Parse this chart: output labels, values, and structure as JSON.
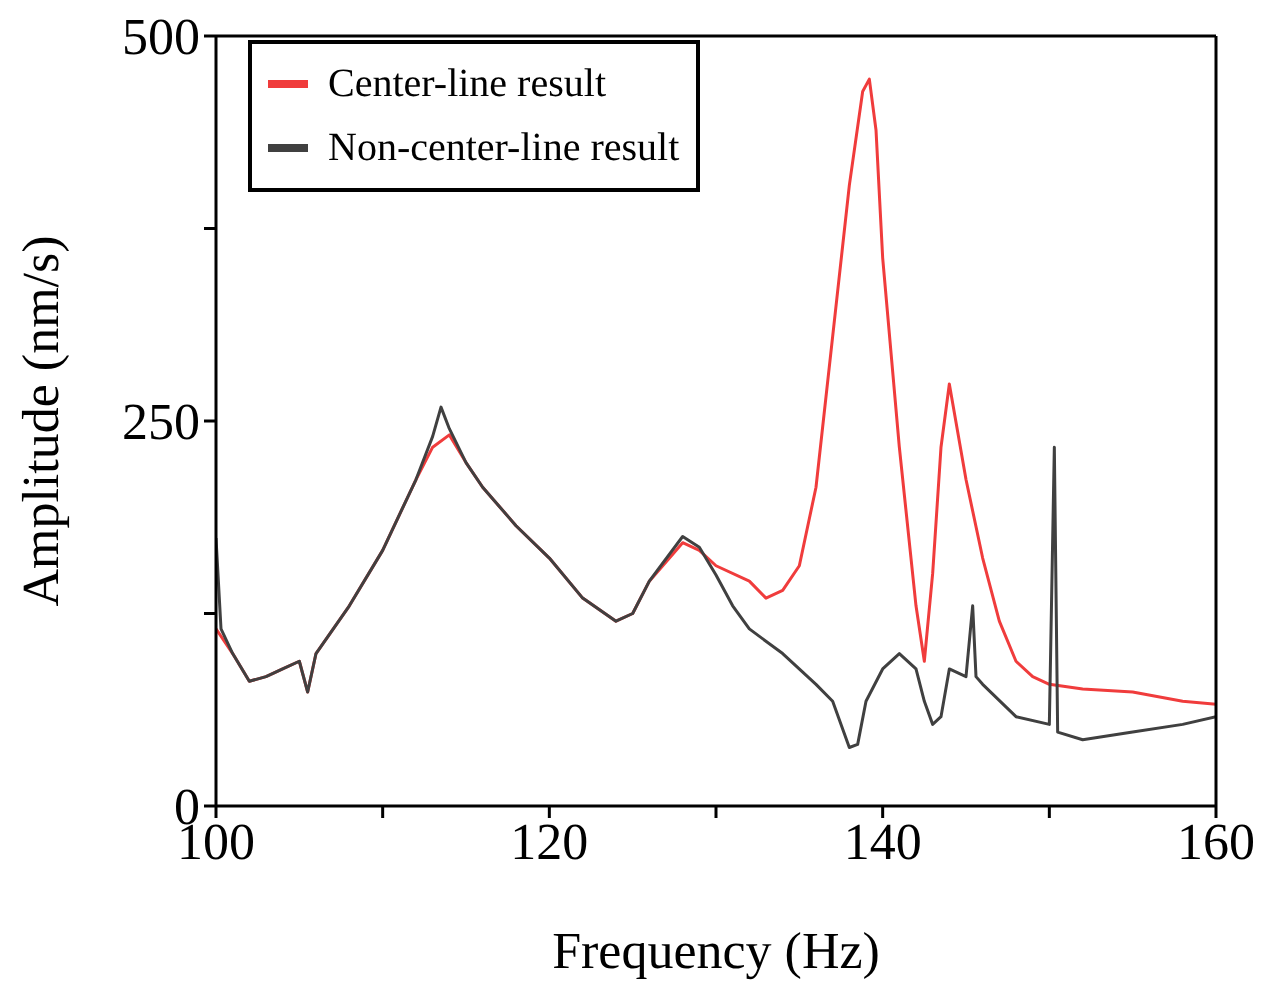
{
  "chart_data": {
    "type": "line",
    "xlabel": "Frequency (Hz)",
    "ylabel": "Amplitude (nm/s)",
    "xlim": [
      100,
      160
    ],
    "ylim": [
      0,
      500
    ],
    "xticks": [
      100,
      {
        "value": 110,
        "label": null
      },
      120,
      {
        "value": 130,
        "label": null
      },
      140,
      {
        "value": 150,
        "label": null
      },
      160
    ],
    "yticks": [
      0,
      {
        "value": 125,
        "label": null
      },
      250,
      {
        "value": 375,
        "label": null
      },
      500
    ],
    "grid": false,
    "legend": "top left",
    "marker": "none",
    "line_style": "solid",
    "series": [
      {
        "name": "Center-line result",
        "color": "#f03c3c",
        "x": [
          100,
          101,
          102,
          103,
          104,
          105,
          105.5,
          106,
          108,
          110,
          112,
          113,
          114,
          115,
          116,
          118,
          120,
          122,
          124,
          125,
          126,
          128,
          129,
          130,
          132,
          133,
          134,
          135,
          136,
          137,
          138,
          138.8,
          139.2,
          139.6,
          140,
          141,
          142,
          142.5,
          143,
          143.5,
          144,
          144.5,
          145,
          146,
          147,
          148,
          149,
          150,
          152,
          155,
          158,
          160
        ],
        "values": [
          115,
          99,
          81,
          84,
          89,
          94,
          74,
          99,
          130,
          166,
          212,
          233,
          241,
          223,
          207,
          182,
          161,
          135,
          120,
          125,
          146,
          171,
          166,
          156,
          146,
          135,
          140,
          156,
          207,
          305,
          403,
          464,
          472,
          439,
          356,
          233,
          130,
          94,
          151,
          233,
          274,
          243,
          212,
          161,
          120,
          94,
          84,
          79,
          76,
          74,
          68,
          66
        ]
      },
      {
        "name": "Non-center-line result",
        "color": "#404040",
        "x": [
          100,
          100.3,
          101,
          102,
          103,
          104,
          105,
          105.5,
          106,
          108,
          110,
          112,
          113,
          113.5,
          114,
          115,
          116,
          118,
          120,
          122,
          124,
          125,
          126,
          128,
          129,
          130,
          131,
          132,
          134,
          136,
          137,
          138,
          138.5,
          139,
          140,
          141,
          142,
          142.5,
          143,
          143.5,
          144,
          145,
          145.4,
          145.6,
          146,
          148,
          150,
          150.3,
          150.5,
          152,
          155,
          158,
          160
        ],
        "values": [
          174,
          115,
          99,
          81,
          84,
          89,
          94,
          74,
          99,
          130,
          166,
          212,
          240,
          259,
          245,
          223,
          207,
          182,
          161,
          135,
          120,
          125,
          146,
          175,
          168,
          150,
          130,
          115,
          99,
          79,
          68,
          38,
          40,
          68,
          89,
          99,
          89,
          68,
          53,
          58,
          89,
          84,
          130,
          84,
          79,
          58,
          53,
          233,
          48,
          43,
          48,
          53,
          58
        ]
      }
    ]
  }
}
